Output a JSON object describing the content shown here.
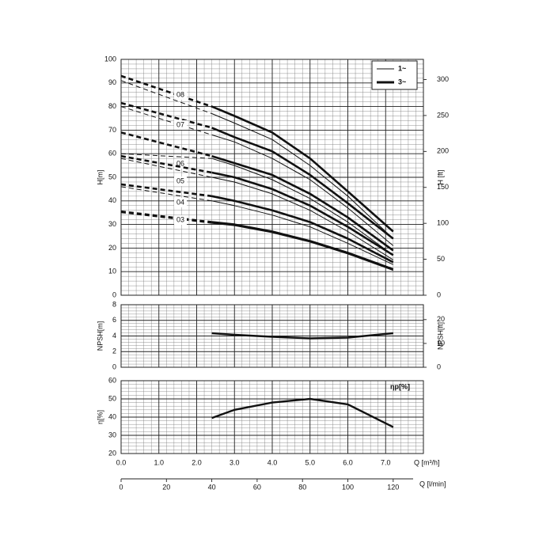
{
  "chart_data": [
    {
      "type": "line",
      "y_label": "H[m]",
      "y2_label": "H [ft]",
      "x": [
        0,
        2.4,
        3,
        4,
        5,
        6,
        7.2
      ],
      "xlim": [
        0,
        8
      ],
      "ylim": [
        0,
        100
      ],
      "yticks": [
        0,
        10,
        20,
        30,
        40,
        50,
        60,
        70,
        80,
        90,
        100
      ],
      "y2lim": [
        0,
        328.08
      ],
      "y2ticks": [
        0,
        50,
        100,
        150,
        200,
        250,
        300
      ],
      "grid": true,
      "minor_grid": {
        "x": 0.2,
        "y": 2
      },
      "legend": {
        "one_phase": "1~",
        "three_phase": "3~"
      },
      "series": [
        {
          "label": "08",
          "three_phase": [
            93,
            80,
            76,
            69,
            58,
            44,
            27
          ],
          "one_phase": [
            91,
            77,
            73,
            66,
            55,
            42,
            24
          ]
        },
        {
          "label": "07",
          "three_phase": [
            81.5,
            71,
            67,
            61,
            51,
            39,
            24
          ],
          "one_phase": [
            80,
            68,
            65,
            58,
            49,
            37,
            21
          ]
        },
        {
          "label": "06",
          "three_phase": [
            69,
            59,
            56,
            51,
            43,
            33,
            19
          ],
          "one_phase": [
            60,
            58,
            55,
            49,
            41,
            31,
            17
          ]
        },
        {
          "label": "05",
          "three_phase": [
            59,
            52,
            50,
            45,
            38,
            29,
            17
          ],
          "one_phase": [
            58,
            50,
            48,
            43,
            36,
            27,
            15
          ]
        },
        {
          "label": "04",
          "three_phase": [
            47,
            42,
            40,
            36,
            31,
            24,
            14
          ],
          "one_phase": [
            46,
            40,
            38,
            34,
            29,
            22,
            13
          ]
        },
        {
          "label": "03",
          "three_phase": [
            35.5,
            31,
            30,
            27,
            23,
            18,
            11
          ],
          "one_phase": [
            35,
            30.5,
            29.5,
            26.5,
            22.5,
            17.5,
            10.5
          ]
        }
      ]
    },
    {
      "type": "line",
      "y_label": "NPSH[m]",
      "y2_label": "NPSH[ft]",
      "x": [
        2.4,
        3,
        4,
        5,
        6,
        7.2
      ],
      "values": [
        4.35,
        4.15,
        3.9,
        3.7,
        3.8,
        4.35
      ],
      "xlim": [
        0,
        8
      ],
      "ylim": [
        0,
        8
      ],
      "yticks": [
        0,
        2,
        4,
        6,
        8
      ],
      "y2lim": [
        0,
        26.25
      ],
      "y2ticks": [
        0,
        10,
        20
      ],
      "grid": true,
      "minor_grid": {
        "x": 0.2,
        "y": 0.4
      }
    },
    {
      "type": "line",
      "y_label": "η[%]",
      "annotation": "ηp[%]",
      "x": [
        2.4,
        3,
        4,
        5,
        6,
        7.2
      ],
      "values": [
        39.5,
        44,
        48,
        50,
        47,
        34.5
      ],
      "xlim": [
        0,
        8
      ],
      "ylim": [
        20,
        60
      ],
      "yticks": [
        20,
        30,
        40,
        50,
        60
      ],
      "xticks": [
        {
          "value": 0,
          "label": "0.0"
        },
        {
          "value": 1,
          "label": "1.0"
        },
        {
          "value": 2,
          "label": "2.0"
        },
        {
          "value": 3,
          "label": "3.0"
        },
        {
          "value": 4,
          "label": "4.0"
        },
        {
          "value": 5,
          "label": "5.0"
        },
        {
          "value": 6,
          "label": "6.0"
        },
        {
          "value": 7,
          "label": "7.0"
        }
      ],
      "x_label": "Q [m³/h]",
      "x2_label": "Q [l/min]",
      "x2lim": [
        0,
        133.33
      ],
      "x2ticks": [
        0,
        20,
        40,
        60,
        80,
        100,
        120
      ],
      "grid": true,
      "minor_grid": {
        "x": 0.2,
        "y": 2
      }
    }
  ]
}
